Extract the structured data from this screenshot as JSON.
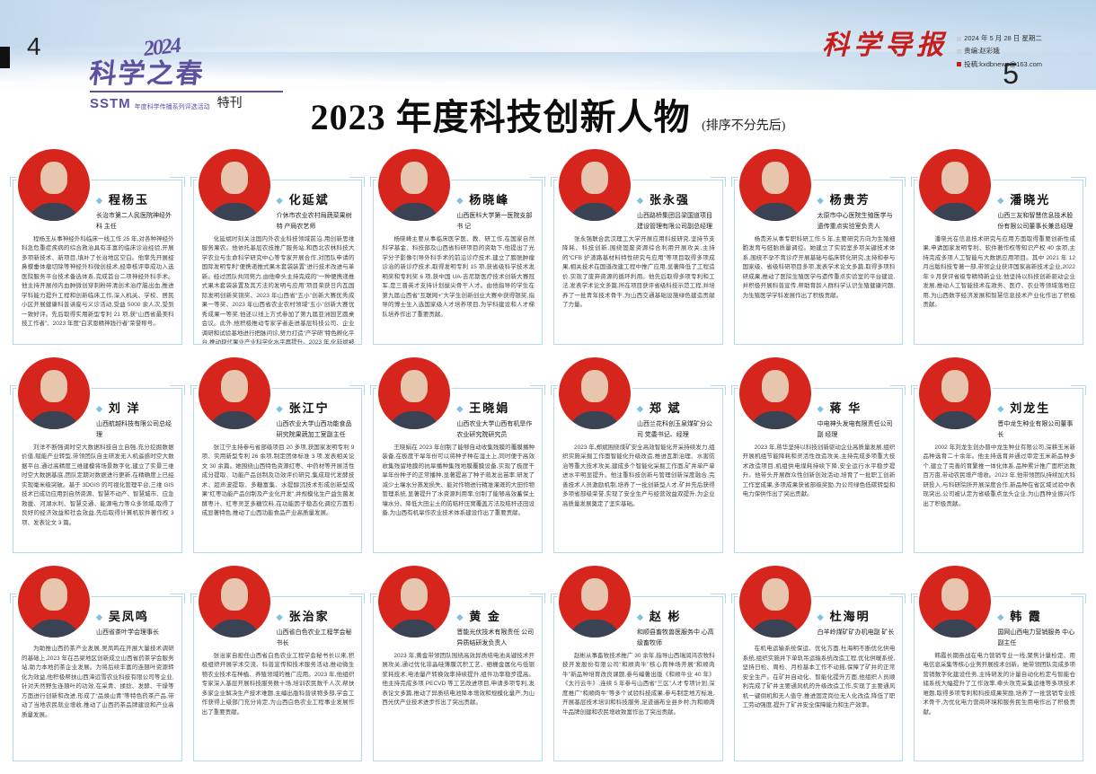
{
  "page": {
    "left_page_number": "4",
    "right_page_number": "5",
    "logo": {
      "year_script": "2024",
      "title": "科学之春",
      "org": "SSTM",
      "subtitle": "年度科学传播系列评选活动",
      "edition": "特刊"
    },
    "masthead": {
      "paper_name": "科学导报",
      "date_line": "2024 年 5 月 28 日  星期二",
      "editor_line": "责编:赵彩娥",
      "submit_line": "投稿:kxdbnews@163.com"
    },
    "title": "2023 年度科技创新人物",
    "title_note": "(排序不分先后)"
  },
  "colors": {
    "photo_ring_red": "#d6251c",
    "box_border_blue": "#b5daed",
    "diamond_blue": "#7ec1e4",
    "masthead_red": "#c41f1c",
    "logo_purple": "#5d50a0"
  },
  "people": [
    {
      "name": "程杨玉",
      "title": "长治市第二人民医院神经外科 主任",
      "bio": "程杨玉从事神经外科临床一线工作 25 年,对各种神经外科急危重症疾病的综合救治具有丰富的临床诊治经验,开展多项新技术、新项目,填补了长治地区空白。他率先开展经鼻蝶垂体瘤切除等神经外科微创技术,经审核评审成功入选医院服务平台技术备选体系,完成首台二项神经外科手术。他主持开展颅内血肿微创穿刺粉碎清创术治疗脑出血,推进学科能力提升工程和创新临床工作,深入机关、学校、居民小区开展健康科普讲座与义诊活动,受益 5000 余人次,受到一致好评。先后取得实用新型专利 21 项,获“山西省最美科技工作者”、2023 年度“白求恩精神践行者”荣誉称号。"
    },
    {
      "name": "化延斌",
      "title": "介休市农业农村局蔬菜果树特 产局农艺师",
      "bio": "化延斌时刻关注国内外农业科技领域前沿,用创新思维服务果农。他依托基层农技推广服务站,和西北农林科技大学农业与生命科学研究中心等专家开展合作,对团队申请的国际发明专利“便携递推式果木套袋装置”进行技术改进与革新。经过团队共同努力,由他牵头主持完成的“一种便携递推式果木套袋装置及其方法的发明与应用”项目荣获日内瓦国际发明创新奖铜奖、2023 年山西省“五小”创新大赛优秀成果一等奖、2023 年山西省农业农村领域“五小”创新大赛优秀成果一等奖,他还以线上方式参加了第九届亚洲园艺圆桌会议。此外,他积极推动专家学者走进基层科技公司、企业调研和试验基地进行把脉问诊,努力打造“产学研”特色孵化平台,推动现代果业产业科学化水平再提升。2023 年,化延斌被中共介休市委人才工作领导组授予介休市“智汇定宝”拔尖人才荣誉称号。"
    },
    {
      "name": "杨晓峰",
      "title": "山西医科大学第一医院支部书 记",
      "bio": "杨晓峰主要从事临床医学医、教、研工作,在国家自然科学基金、科技部及山西省科研项目的资助下,他提出了光学分子影像引导外科手术的前沿诊疗技术,建立了膀胱肿瘤诊治的新诊疗技术,取得发明专利 15 项,获省级科学技术发明奖和专利奖 6 项,获中国 UA-吉尼斯医疗技术创新大赛冠军,是三晋英才支持计划拔尖骨干人才。由他指导的学生在第九届山西省“互联网+”大学生创新创业大赛中获得银奖,指导的博士生入选国家级人才培养项目,为学科建设和人才梯队培养作出了重要贡献。"
    },
    {
      "name": "张永强",
      "title": "山西路桥集团吕梁国道项目 建设管理有限公司副总经理",
      "bio": "张永强联合武汉理工大学开展应用科技研究,坚持节支降耗、科技创新,围绕固废资源综合利用开展攻关,主持的“CFB 炉渣路基材料特性研究与应用”等项目取得多项成果,相关技术在国道改建工程中推广应用,显著降低了工程造价,实现了废弃资源的循环利用。他先后取得多项专利和工法,发表学术论文多篇,所在项目获评省级科技示范工程,并培养了一批青年技术骨干,为山西交通基础设施绿色建造贡献了力量。"
    },
    {
      "name": "杨贵芳",
      "title": "太原市中心医院生殖医学与 遗传重点实验室负责人",
      "bio": "杨贵芳从事专职科研工作 5 年,主要研究方向为生殖细胞发育与胚胎质量调控。她建立了实验室多项关键技术体系,围绕不孕不育诊疗开展基础与临床转化研究,主持和参与国家级、省级科研项目多项,发表学术论文多篇,取得多项科研成果,推动了医院生殖医学与遗传重点实验室的平台建设,并积极开展科普宣传,帮助育龄人群科学认识生殖健康问题,为生殖医学学科发展作出了积极贡献。"
    },
    {
      "name": "潘晓光",
      "title": "山西三友和智慧信息技术股 份有限公司董事长兼总经理",
      "bio": "潘晓光在信息技术研究与应用方面取得重要创新性成果,申请国家发明专利、软件著作权等知识产权 40 余项,主持完成多项人工智能与大数据应用项目。其中 2021 年 12 月出版科技专著一部,带领企业获评国家高新技术企业,2022 年 9 月获评省级专精特新企业,他坚持以科技创新驱动企业发展,推动人工智能技术在政务、医疗、农业等领域落地应用,为山西数字经济发展和智慧信息技术产业化作出了积极贡献。"
    },
    {
      "name": "刘 洋",
      "title": "山西航越科技有限公司总经理",
      "bio": "刘洋不断强调时空大数据科技自立自强,充分挖掘数据价值,赋能产业转型,带领团队自主研发无人机遥感时空大数据平台,通过高精度三维建模将场景数字化,建立了实景三维时空大数据基底,团队定期对数据进行更新,在精确度上已经实现毫米级突破。基于 3DGIS 的可视化管理平台,三维 GIS 技术已成功应用到自然资源、智慧不动产、智慧城市、应急救援、河湖水利、智慧交通、能源电力等众多领域,取得了良好的经济效益和社会效益,先后取得计算机软件著作权 3 项、发表论文 3 篇。"
    },
    {
      "name": "张江宁",
      "title": "山西农业大学山西功能食品 研究院果蔬加工室副主任",
      "bio": "张江宁主持参与省部级项目 20 多项,获国家发明专利 9 项、实用新型专利 26 余项,制定团体标准 3 项,发表相关论文 30 余篇。她围绕山西特色资源红枣、中药材等开展活性成分提取、功能产品创制及功效评价研究,集成现代发酵技术、超声波提取、多糖富集、水提醇沉技术形成创新型成果“红枣功能产品创制及产业化开发”,并规模化生产益生菌发酵枣汁、红枣灵芝多糖饮料,在功能因子稳态化调控方面形成显著特色,推动了山西功能食品产业高质量发展。"
    },
    {
      "name": "王晓娟",
      "title": "山西农业大学山西有机旱作 农业研究院研究员",
      "bio": "王晓娟在 2023 年创制了能够自动收集残膜的覆膜播种装备,在极度干旱年份可以将种子种在湿土上,同时便于高效收集残留地膜的抗旱播种集残地膜覆膜设备,实现了极度干旱年份种子的正常播种,显著提高了种子萌发出苗率;研发了减少土壤水分蒸发损失、能对作物进行精准灌溉的大田作物管理系统,显著提升了水资源利用率;创制了能够高效蓄保土壤水分、降低大田尘土的防秸秆压窝覆盖方法及秸秆还田设备,为山西有机旱作农业技术体系建设作出了重要贡献。"
    },
    {
      "name": "郑 斌",
      "title": "山西兰花科创玉泉煤矿分公司 党委书记、经理",
      "bio": "2023 年,郑斌围绕煤矿安全高效智能化开采持续发力,组织实施采掘工作面智能化升级改造,推进瓦斯治理、水害防治等重大技术攻关,建成多个智能化采掘工作面,矿井单产单进水平明显提升。他注重科技创新与管理创新深度融合,完善技术人员激励机制,培养了一批创新型人才,矿井先后获得多项省部级荣誉,实现了安全生产与经营效益双提升,为企业高质量发展奠定了坚实基础。"
    },
    {
      "name": "蒋 华",
      "title": "中电神头发电有限责任公司副 经理",
      "bio": "2023 年,蒋华坚持以科技创新驱动企业高质量发展,组织开展机组节能降耗和灵活性改造攻关,主持完成多项重大技术改造项目,机组供电煤耗持续下降,安全运行水平稳步提升。他带头开展群众性创新创效活动,培育了一批职工创新工作室成果,多项成果获省部级奖励,为公司绿色低碳转型和电力保供作出了突出贡献。"
    },
    {
      "name": "刘龙生",
      "title": "晋中龙生种业有限公司董事长",
      "bio": "2002 年刘龙生创办晋中龙生种业有限公司,深耕玉米新品种选育二十余年。他主持选育并通过审定玉米新品种多个,建立了完善的育繁推一体化体系,品种累计推广面积达数百万亩,带动农民增产增收。2023 年,他带领团队持续加大科研投入,与科研院所开展深度合作,新品种在省区域试验中表现突出,公司被认定为省级重点龙头企业,为山西种业振兴作出了积极贡献。"
    },
    {
      "name": "吴凤鸣",
      "title": "山西省茶叶学会理事长",
      "bio": "为助推山西药茶产业发展,吴凤鸣在开展大量技术调研的基础上,2023 年在吕梁地区创新成立山西省药茶学会服务站,助力本地药茶企业发展。为将后续丰富的连翘叶资源转化为效益,他积极帮扶山西漳远雪农业科技有限公司等企业,针对天然野生连翘叶的功效,在采青、揉捻、发酵、干燥等方面进行创新和改进,形成了“品焕山青”等特色药茶产品,带动了当地农民就业增收,推动了山西药茶品牌建设和产业高质量发展。"
    },
    {
      "name": "张治家",
      "title": "山西省白色农业工程学会秘书长",
      "bio": "张治家自担任山西省白色农业工程学会秘书长以来,积极组织开展学术交流、科普宣传和技术服务活动,推动微生物农业技术在种植、养殖领域的推广应用。2023 年,他组织专家深入基层开展科技服务数十场,培训农民数千人次,帮扶多家企业解决生产技术难题,主编出版科普读物多部,学会工作获得上级部门充分肯定,为山西白色农业工程事业发展作出了重要贡献。"
    },
    {
      "name": "黄 金",
      "title": "晋能光伏技术有限责任 公司异质结研发负责人",
      "bio": "2023 年,黄金带领团队围绕高效异质结电池关键技术开展攻关,通过优化非晶硅薄膜沉积工艺、细栅金属化与低银浆耗技术,电池量产转换效率持续提升,组件功率稳步提高。他主持完成多项 PECVD 等工艺改进项目,申请多项专利,发表论文多篇,推动了异质结电池降本增效和规模化量产,为山西光伏产业技术进步作出了突出贡献。"
    },
    {
      "name": "赵 彬",
      "title": "和顺县畜牧兽医服务中 心高级畜牧师",
      "bio": "赵彬从事畜牧技术推广 30 余年,指导山西瑞润鸿农牧科技开发股份有限公司“和顺肉牛”核心育种场开展“和顺肉牛”新品种培育改良课题,参与编著出版《和顺牛业 40 年》《太行云牛》,连续 5 年参与山西省“三区”人才专项计划,深度推广“和顺肉牛”等多个试验科技成果,参与制定地方标准,开展基层技术培训和科技服务,足迹遍布全县乡村,为和顺肉牛品牌创建和农民增收致富作出了突出贡献。"
    },
    {
      "name": "杜海明",
      "title": "白羊岭煤矿矿办机电副 矿长",
      "bio": "在机电运输系统保运、优化方面,杜海明不断优化供电系统,组织实施井下单轨吊运输系统改造工程,优化供暖系统,坚持日检、周检、月检基本工作不动摇,保障了矿井的正常安全生产。在矿井自动化、智能化提升方面,他组织人员顺利完成了矿井主要通风机的升级改造工作,实现了主要通风机一键倒机和无人值守,推进固定岗位无人化改造,降低了职工劳动强度,提升了矿井安全保障能力和生产效率。"
    },
    {
      "name": "韩 霞",
      "title": "国网山西电力营销服务 中心副主任",
      "bio": "韩霞长期奋战在电力营销专业一线,聚焦计量检定、用电信息采集等核心业务开展技术创新。她带领团队完成多项营销数字化建设任务,主持研发的计量自动化检定与智能仓储系统大幅提升了工作效率,牵头攻克采集运维等多项技术难题,取得多项专利和科技成果奖励,培养了一批营销专业技术骨干,为优化电力营商环境和服务民生用电作出了积极贡献。"
    }
  ]
}
